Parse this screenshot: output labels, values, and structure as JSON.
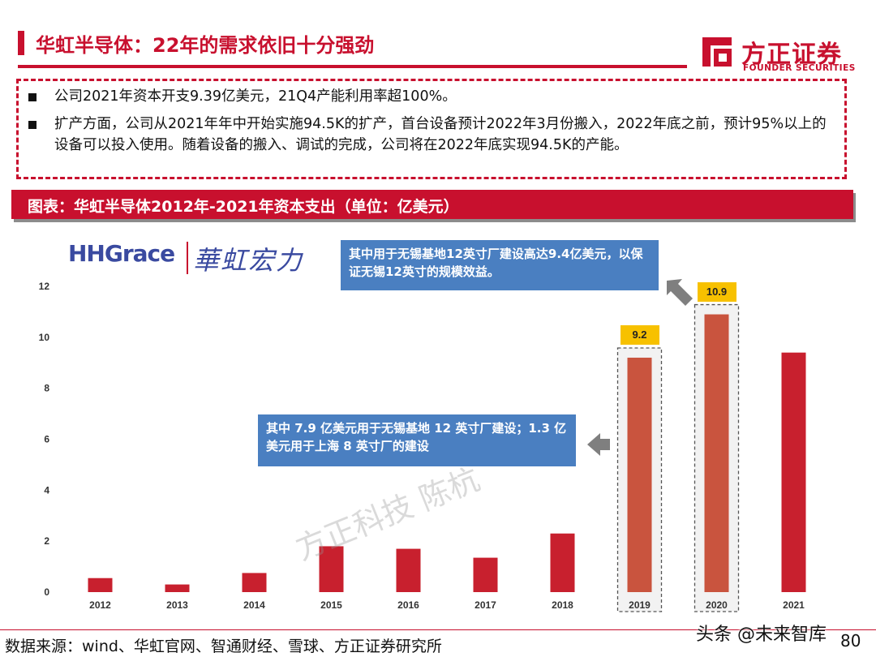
{
  "header": {
    "title": "华虹半导体：22年的需求依旧十分强劲",
    "brand_cn": "方正证券",
    "brand_en": "FOUNDER SECURITIES",
    "accent_color": "#c8102e"
  },
  "bullets": [
    "公司2021年资本开支9.39亿美元，21Q4产能利用率超100%。",
    "扩产方面，公司从2021年年中开始实施94.5K的扩产，首台设备预计2022年3月份搬入，2022年底之前，预计95%以上的设备可以投入使用。随着设备的搬入、调试的完成，公司将在2022年底实现94.5K的产能。"
  ],
  "figure": {
    "caption": "图表：华虹半导体2012年-2021年资本支出（单位：亿美元）",
    "company_logo_en": "HHGrace",
    "company_logo_cn": "華虹宏力"
  },
  "chart_data": {
    "type": "bar",
    "categories": [
      "2012",
      "2013",
      "2014",
      "2015",
      "2016",
      "2017",
      "2018",
      "2019",
      "2020",
      "2021"
    ],
    "values": [
      0.55,
      0.3,
      0.75,
      1.8,
      1.7,
      1.35,
      2.3,
      9.2,
      10.9,
      9.4
    ],
    "ylim": [
      0,
      12
    ],
    "yticks": [
      0,
      2,
      4,
      6,
      8,
      10,
      12
    ],
    "data_labels": [
      {
        "category": "2019",
        "text": "9.2"
      },
      {
        "category": "2020",
        "text": "10.9"
      }
    ],
    "highlighted": [
      "2019",
      "2020"
    ],
    "bar_color": "#c8202e",
    "highlight_color": "#c9543e",
    "label_color": "#f7c100"
  },
  "annotations": {
    "note_2020": "其中用于无锡基地12英寸厂建设高达9.4亿美元，以保证无锡12英寸的规模效益。",
    "note_2019": "其中 7.9 亿美元用于无锡基地 12 英寸厂建设；1.3 亿美元用于上海 8 英寸厂的建设",
    "note_color": "#4a7fc1"
  },
  "watermark": "方正科技 陈杭",
  "footer": {
    "source": "数据来源：wind、华虹官网、智通财经、雪球、方正证券研究所",
    "credit": "头条 @未来智库",
    "page": "80"
  }
}
